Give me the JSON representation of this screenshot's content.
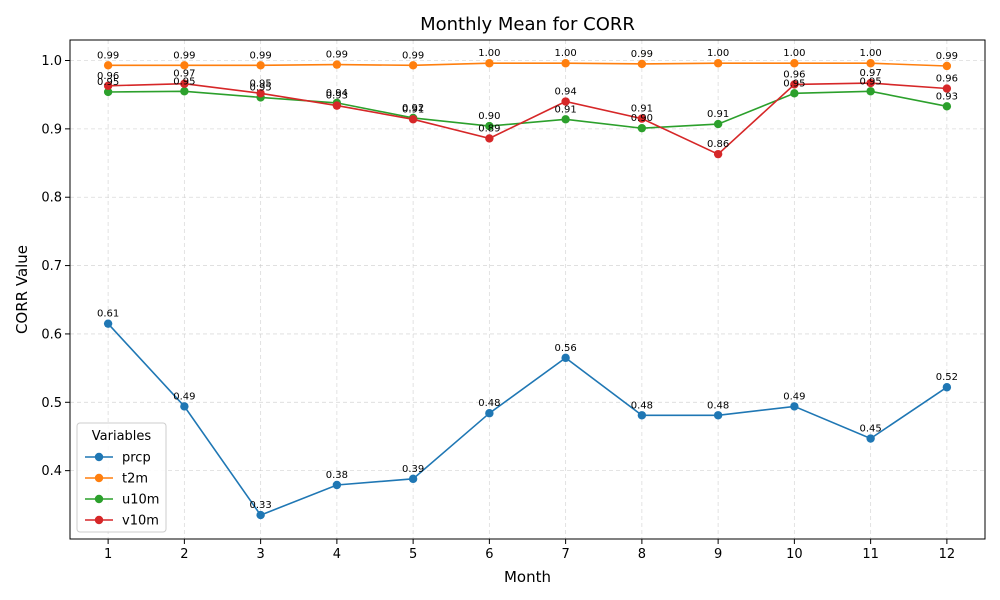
{
  "chart_data": {
    "type": "line",
    "title": "Monthly Mean for CORR",
    "xlabel": "Month",
    "ylabel": "CORR Value",
    "x": [
      1,
      2,
      3,
      4,
      5,
      6,
      7,
      8,
      9,
      10,
      11,
      12
    ],
    "xticks": [
      "1",
      "2",
      "3",
      "4",
      "5",
      "6",
      "7",
      "8",
      "9",
      "10",
      "11",
      "12"
    ],
    "ylim": [
      0.3,
      1.03
    ],
    "yticks": [
      "0.4",
      "0.5",
      "0.6",
      "0.7",
      "0.8",
      "0.9",
      "1.0"
    ],
    "ytick_values": [
      0.4,
      0.5,
      0.6,
      0.7,
      0.8,
      0.9,
      1.0
    ],
    "grid": true,
    "legend": {
      "title": "Variables",
      "placement": "lower-left"
    },
    "series": [
      {
        "name": "prcp",
        "color": "#1f77b4",
        "values": [
          0.615,
          0.494,
          0.335,
          0.379,
          0.388,
          0.484,
          0.565,
          0.481,
          0.481,
          0.494,
          0.447,
          0.522
        ],
        "labels": [
          "0.61",
          "0.49",
          "0.33",
          "0.38",
          "0.39",
          "0.48",
          "0.56",
          "0.48",
          "0.48",
          "0.49",
          "0.45",
          "0.52"
        ]
      },
      {
        "name": "t2m",
        "color": "#ff7f0e",
        "values": [
          0.993,
          0.993,
          0.993,
          0.994,
          0.993,
          0.996,
          0.996,
          0.995,
          0.996,
          0.996,
          0.996,
          0.992
        ],
        "labels": [
          "0.99",
          "0.99",
          "0.99",
          "0.99",
          "0.99",
          "1.00",
          "1.00",
          "0.99",
          "1.00",
          "1.00",
          "1.00",
          "0.99"
        ]
      },
      {
        "name": "u10m",
        "color": "#2ca02c",
        "values": [
          0.954,
          0.955,
          0.946,
          0.938,
          0.916,
          0.904,
          0.914,
          0.901,
          0.907,
          0.952,
          0.955,
          0.933
        ],
        "labels": [
          "0.95",
          "0.95",
          "0.95",
          "0.94",
          "0.92",
          "0.90",
          "0.91",
          "0.90",
          "0.91",
          "0.95",
          "0.95",
          "0.93"
        ]
      },
      {
        "name": "v10m",
        "color": "#d62728",
        "values": [
          0.963,
          0.966,
          0.952,
          0.934,
          0.914,
          0.886,
          0.94,
          0.915,
          0.863,
          0.965,
          0.967,
          0.959
        ],
        "labels": [
          "0.96",
          "0.97",
          "0.95",
          "0.93",
          "0.91",
          "0.89",
          "0.94",
          "0.91",
          "0.86",
          "0.96",
          "0.97",
          "0.96"
        ]
      }
    ]
  }
}
